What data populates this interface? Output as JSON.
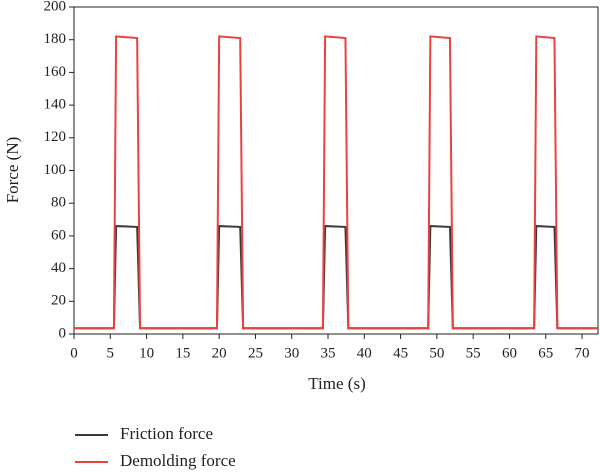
{
  "chart_data": {
    "type": "line",
    "xlabel": "Time (s)",
    "ylabel": "Force (N)",
    "x": [
      0,
      5.5,
      5.8,
      8.7,
      9.1,
      19.7,
      20.0,
      22.9,
      23.3,
      34.3,
      34.6,
      37.4,
      37.8,
      48.8,
      49.1,
      51.8,
      52.2,
      63.4,
      63.7,
      66.2,
      66.6,
      72.2
    ],
    "series": [
      {
        "name": "Friction force",
        "color": "#3a3a3a",
        "values": [
          3.5,
          3.5,
          66,
          65.5,
          3.5,
          3.5,
          66,
          65.5,
          3.5,
          3.5,
          66,
          65.5,
          3.5,
          3.5,
          66,
          65.5,
          3.5,
          3.5,
          66,
          65.5,
          3.5,
          3.5
        ]
      },
      {
        "name": "Demolding force",
        "color": "#e8413e",
        "values": [
          3.5,
          3.5,
          182,
          181,
          3.5,
          3.5,
          182,
          181,
          3.5,
          3.5,
          182,
          181,
          3.5,
          3.5,
          182,
          181,
          3.5,
          3.5,
          182,
          181,
          3.5,
          3.5
        ]
      }
    ],
    "xlim": [
      0,
      72.2
    ],
    "xticks": [
      0,
      5,
      10,
      15,
      20,
      25,
      30,
      35,
      40,
      45,
      50,
      55,
      60,
      65,
      70
    ],
    "ylim": [
      0,
      200
    ],
    "yticks": [
      0,
      20,
      40,
      60,
      80,
      100,
      120,
      140,
      160,
      180,
      200
    ],
    "grid": false
  }
}
